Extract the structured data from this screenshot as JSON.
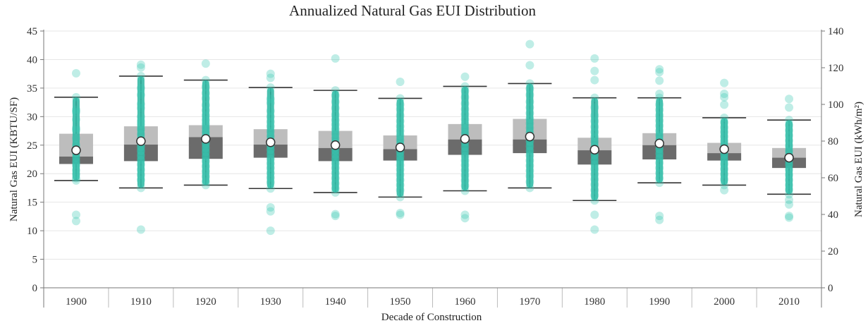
{
  "chart_data": {
    "type": "boxplot",
    "title": "Annualized Natural Gas EUI Distribution",
    "xlabel": "Decade of Construction",
    "ylabel": "Natural Gas EUI (KBTU/SF)",
    "y2label": "Natural Gas EUI (kWh/m²)",
    "ylim": [
      0,
      45
    ],
    "y2lim": [
      0,
      140
    ],
    "yticks": [
      0,
      5,
      10,
      15,
      20,
      25,
      30,
      35,
      40,
      45
    ],
    "y2ticks": [
      0,
      20,
      40,
      60,
      80,
      100,
      120,
      140
    ],
    "grid": true,
    "colors": {
      "points": "#3cc7b2",
      "strip": "#2bb5a1",
      "box_upper": "#bdbdbd",
      "box_lower": "#6b6b6b",
      "mean_marker": "#ffffff",
      "mean_outline": "#333333"
    },
    "categories": [
      "1900",
      "1910",
      "1920",
      "1930",
      "1940",
      "1950",
      "1960",
      "1970",
      "1980",
      "1990",
      "2000",
      "2010"
    ],
    "boxes": [
      {
        "decade": "1900",
        "whisker_low": 18.8,
        "q1": 21.7,
        "median": 23.0,
        "q3": 27.0,
        "whisker_high": 33.4,
        "mean": 24.1,
        "points": [
          37.6,
          33.4,
          31.2,
          30.8,
          29.5,
          28.0,
          27.6,
          26.2,
          25.0,
          24.3,
          23.6,
          22.8,
          22.1,
          21.5,
          20.6,
          19.9,
          19.2,
          18.8,
          12.8,
          11.7
        ]
      },
      {
        "decade": "1910",
        "whisker_low": 17.5,
        "q1": 22.2,
        "median": 25.1,
        "q3": 28.3,
        "whisker_high": 37.1,
        "mean": 25.7,
        "points": [
          39.1,
          38.6,
          37.1,
          35.0,
          33.8,
          32.2,
          31.5,
          30.0,
          29.2,
          28.6,
          27.8,
          26.9,
          26.1,
          25.4,
          24.7,
          24.0,
          23.2,
          22.4,
          21.6,
          20.7,
          19.8,
          18.9,
          17.5,
          10.2
        ]
      },
      {
        "decade": "1920",
        "whisker_low": 18.0,
        "q1": 22.6,
        "median": 26.4,
        "q3": 28.5,
        "whisker_high": 36.4,
        "mean": 26.1,
        "points": [
          39.3,
          36.4,
          35.2,
          34.1,
          33.2,
          32.0,
          31.1,
          30.2,
          29.4,
          28.7,
          28.0,
          27.3,
          26.6,
          25.9,
          25.2,
          24.5,
          23.8,
          23.0,
          22.2,
          21.3,
          20.4,
          19.5,
          18.6,
          18.0
        ]
      },
      {
        "decade": "1930",
        "whisker_low": 17.4,
        "q1": 22.8,
        "median": 25.1,
        "q3": 27.8,
        "whisker_high": 35.1,
        "mean": 25.5,
        "points": [
          37.5,
          36.8,
          35.1,
          33.1,
          32.4,
          31.0,
          30.0,
          29.1,
          28.3,
          27.4,
          26.6,
          25.8,
          25.0,
          24.2,
          23.4,
          22.6,
          21.8,
          21.0,
          20.1,
          19.3,
          18.5,
          17.4,
          14.1,
          13.4,
          10.0
        ]
      },
      {
        "decade": "1940",
        "whisker_low": 16.7,
        "q1": 22.2,
        "median": 24.5,
        "q3": 27.5,
        "whisker_high": 34.6,
        "mean": 25.0,
        "points": [
          40.2,
          34.6,
          33.7,
          32.6,
          31.5,
          30.3,
          29.4,
          28.6,
          27.8,
          27.0,
          26.2,
          25.4,
          24.7,
          24.0,
          23.3,
          22.6,
          21.8,
          21.0,
          20.1,
          19.2,
          18.3,
          17.4,
          16.7,
          12.9,
          12.6
        ]
      },
      {
        "decade": "1950",
        "whisker_low": 15.9,
        "q1": 22.3,
        "median": 24.3,
        "q3": 26.7,
        "whisker_high": 33.2,
        "mean": 24.6,
        "points": [
          36.1,
          33.2,
          32.1,
          31.3,
          30.2,
          29.2,
          28.3,
          27.5,
          26.7,
          25.9,
          25.1,
          24.4,
          23.7,
          23.0,
          22.3,
          21.5,
          20.7,
          19.8,
          18.9,
          18.0,
          17.1,
          15.9,
          13.1,
          12.8
        ]
      },
      {
        "decade": "1960",
        "whisker_low": 17.0,
        "q1": 23.3,
        "median": 26.0,
        "q3": 28.7,
        "whisker_high": 35.3,
        "mean": 26.1,
        "points": [
          37.0,
          35.3,
          34.5,
          33.4,
          32.3,
          31.3,
          30.4,
          29.5,
          28.7,
          27.9,
          27.1,
          26.3,
          25.5,
          24.7,
          23.9,
          23.1,
          22.3,
          21.5,
          20.6,
          19.7,
          18.8,
          17.9,
          17.0,
          12.8,
          12.2
        ]
      },
      {
        "decade": "1970",
        "whisker_low": 17.5,
        "q1": 23.6,
        "median": 26.0,
        "q3": 29.6,
        "whisker_high": 35.8,
        "mean": 26.5,
        "points": [
          42.7,
          39.0,
          35.8,
          34.9,
          33.8,
          32.6,
          31.6,
          30.6,
          29.6,
          28.8,
          28.0,
          27.2,
          26.4,
          25.6,
          24.8,
          24.0,
          23.2,
          22.3,
          21.4,
          20.5,
          19.6,
          18.6,
          17.5
        ]
      },
      {
        "decade": "1980",
        "whisker_low": 15.3,
        "q1": 21.6,
        "median": 24.1,
        "q3": 26.3,
        "whisker_high": 33.3,
        "mean": 24.2,
        "points": [
          40.2,
          38.0,
          36.4,
          33.3,
          31.6,
          30.2,
          29.2,
          28.2,
          27.3,
          26.4,
          25.6,
          24.8,
          24.0,
          23.2,
          22.4,
          21.6,
          20.8,
          19.9,
          19.0,
          18.1,
          17.1,
          16.2,
          15.3,
          12.8,
          10.2
        ]
      },
      {
        "decade": "1990",
        "whisker_low": 18.4,
        "q1": 22.5,
        "median": 25.0,
        "q3": 27.1,
        "whisker_high": 33.3,
        "mean": 25.3,
        "points": [
          38.3,
          37.8,
          36.3,
          34.0,
          33.3,
          32.1,
          31.2,
          30.2,
          29.3,
          28.4,
          27.5,
          26.7,
          25.9,
          25.1,
          24.3,
          23.5,
          22.7,
          21.9,
          21.0,
          20.1,
          19.2,
          18.4,
          12.6,
          11.9
        ]
      },
      {
        "decade": "2000",
        "whisker_low": 18.0,
        "q1": 22.3,
        "median": 23.6,
        "q3": 25.4,
        "whisker_high": 29.8,
        "mean": 24.3,
        "points": [
          35.9,
          34.0,
          33.4,
          32.1,
          29.8,
          29.0,
          28.1,
          27.3,
          26.5,
          25.7,
          24.9,
          24.1,
          23.3,
          22.5,
          21.7,
          20.8,
          19.9,
          19.0,
          18.0,
          17.1
        ]
      },
      {
        "decade": "2010",
        "whisker_low": 16.4,
        "q1": 21.0,
        "median": 22.8,
        "q3": 24.5,
        "whisker_high": 29.4,
        "mean": 22.8,
        "points": [
          33.1,
          31.6,
          29.4,
          28.5,
          27.6,
          26.7,
          25.8,
          24.9,
          24.0,
          23.2,
          22.4,
          21.6,
          20.7,
          19.8,
          18.9,
          18.0,
          17.2,
          16.4,
          15.4,
          14.6,
          12.6,
          12.3
        ]
      }
    ]
  }
}
